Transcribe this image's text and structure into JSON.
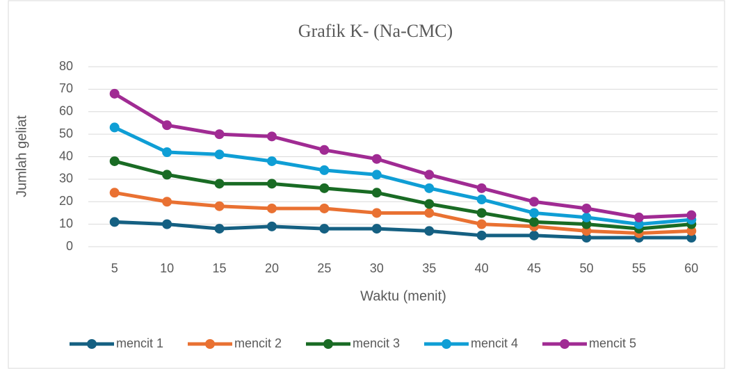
{
  "chart_data": {
    "type": "line",
    "title": "Grafik K- (Na-CMC)",
    "xlabel": "Waktu (menit)",
    "ylabel": "Jumlah geliat",
    "categories": [
      "5",
      "10",
      "15",
      "20",
      "25",
      "30",
      "35",
      "40",
      "45",
      "50",
      "55",
      "60"
    ],
    "series": [
      {
        "name": "mencit 1",
        "color": "#156082",
        "values": [
          11,
          10,
          8,
          9,
          8,
          8,
          7,
          5,
          5,
          4,
          4,
          4
        ]
      },
      {
        "name": "mencit 2",
        "color": "#e97132",
        "values": [
          24,
          20,
          18,
          17,
          17,
          15,
          15,
          10,
          9,
          7,
          6,
          7
        ]
      },
      {
        "name": "mencit 3",
        "color": "#196b24",
        "values": [
          38,
          32,
          28,
          28,
          26,
          24,
          19,
          15,
          11,
          10,
          8,
          10
        ]
      },
      {
        "name": "mencit 4",
        "color": "#0f9ed5",
        "values": [
          53,
          42,
          41,
          38,
          34,
          32,
          26,
          21,
          15,
          13,
          10,
          12
        ]
      },
      {
        "name": "mencit 5",
        "color": "#a02b93",
        "values": [
          68,
          54,
          50,
          49,
          43,
          39,
          32,
          26,
          20,
          17,
          13,
          14
        ]
      }
    ],
    "ylim": [
      0,
      80
    ],
    "yticks": [
      0,
      10,
      20,
      30,
      40,
      50,
      60,
      70,
      80
    ],
    "grid": true,
    "legend": "bottom"
  }
}
